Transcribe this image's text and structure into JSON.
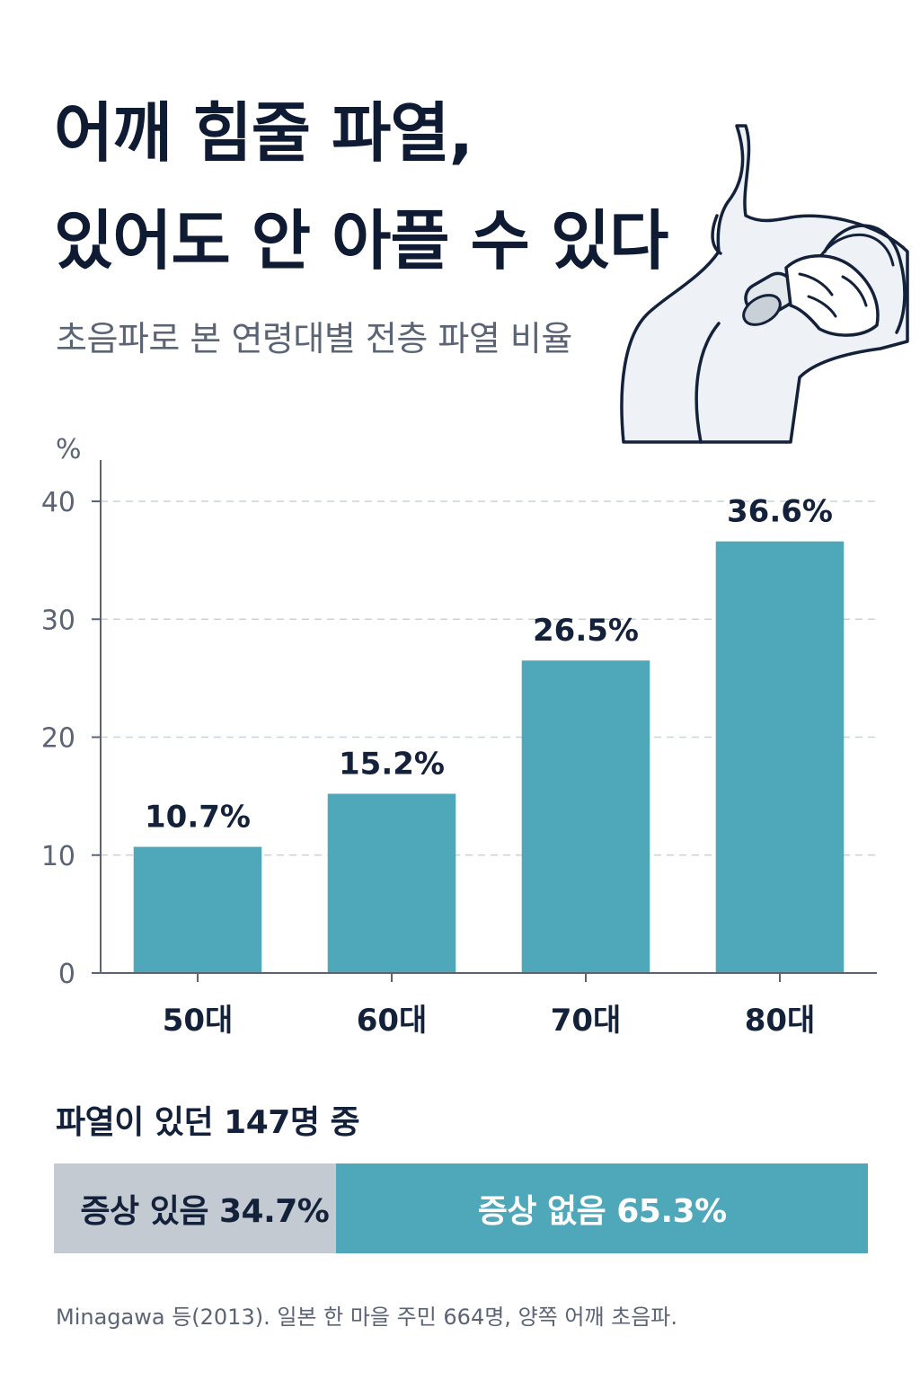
{
  "header": {
    "title_line1": "어깨 힘줄 파열,",
    "title_line2": "있어도 안 아플 수 있다",
    "subtitle": "초음파로 본 연령대별 전층 파열 비율"
  },
  "illustration": {
    "icon": "shoulder-ultrasound-icon"
  },
  "chart_data": {
    "type": "bar",
    "categories": [
      "50대",
      "60대",
      "70대",
      "80대"
    ],
    "values": [
      10.7,
      15.2,
      26.5,
      36.6
    ],
    "value_labels": [
      "10.7%",
      "15.2%",
      "26.5%",
      "36.6%"
    ],
    "y_unit": "%",
    "yticks": [
      0,
      10,
      20,
      30,
      40
    ],
    "ylim": [
      0,
      40
    ],
    "grid": true,
    "bar_color": "#4fa8b9"
  },
  "summary": {
    "title": "파열이 있던 147명 중",
    "segments": [
      {
        "label": "증상 있음 34.7%",
        "value": 34.7,
        "color": "#c3cad1"
      },
      {
        "label": "증상 없음 65.3%",
        "value": 65.3,
        "color": "#4fa8b9"
      }
    ]
  },
  "source": "Minagawa 등(2013). 일본 한 마을 주민 664명, 양쪽 어깨 초음파."
}
